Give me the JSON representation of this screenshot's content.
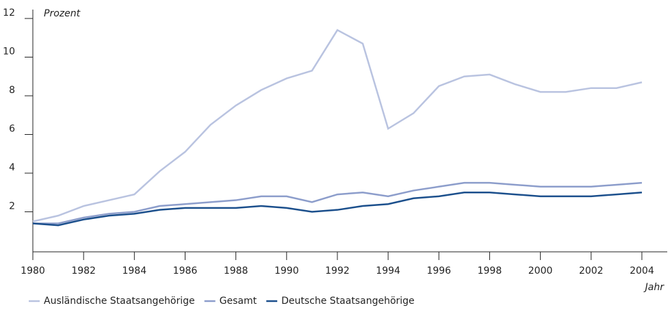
{
  "chart_data": {
    "type": "line",
    "y_label": "Prozent",
    "x_label": "Jahr",
    "x": [
      1980,
      1981,
      1982,
      1983,
      1984,
      1985,
      1986,
      1987,
      1988,
      1989,
      1990,
      1991,
      1992,
      1993,
      1994,
      1995,
      1996,
      1997,
      1998,
      1999,
      2000,
      2001,
      2002,
      2003,
      2004
    ],
    "series": [
      {
        "name": "Ausländische Staatsangehörige",
        "color": "#b9c3e0",
        "values": [
          1.5,
          1.8,
          2.3,
          2.6,
          2.9,
          4.1,
          5.1,
          6.5,
          7.5,
          8.3,
          8.9,
          9.3,
          11.4,
          10.7,
          6.3,
          7.1,
          8.5,
          9.0,
          9.1,
          8.6,
          8.2,
          8.2,
          8.4,
          8.4,
          8.7
        ]
      },
      {
        "name": "Gesamt",
        "color": "#8c9dcb",
        "values": [
          1.4,
          1.4,
          1.7,
          1.9,
          2.0,
          2.3,
          2.4,
          2.5,
          2.6,
          2.8,
          2.8,
          2.5,
          2.9,
          3.0,
          2.8,
          3.1,
          3.3,
          3.5,
          3.5,
          3.4,
          3.3,
          3.3,
          3.3,
          3.4,
          3.5
        ]
      },
      {
        "name": "Deutsche Staatsangehörige",
        "color": "#1b4f8c",
        "values": [
          1.4,
          1.3,
          1.6,
          1.8,
          1.9,
          2.1,
          2.2,
          2.2,
          2.2,
          2.3,
          2.2,
          2.0,
          2.1,
          2.3,
          2.4,
          2.7,
          2.8,
          3.0,
          3.0,
          2.9,
          2.8,
          2.8,
          2.8,
          2.9,
          3.0
        ]
      }
    ],
    "xlim": [
      1980,
      2005
    ],
    "xticks": [
      1980,
      1982,
      1984,
      1986,
      1988,
      1990,
      1992,
      1994,
      1996,
      1998,
      2000,
      2002,
      2004
    ],
    "ylim": [
      0,
      12
    ],
    "yticks": [
      2,
      4,
      6,
      8,
      10,
      12
    ],
    "legend": "bottom"
  }
}
